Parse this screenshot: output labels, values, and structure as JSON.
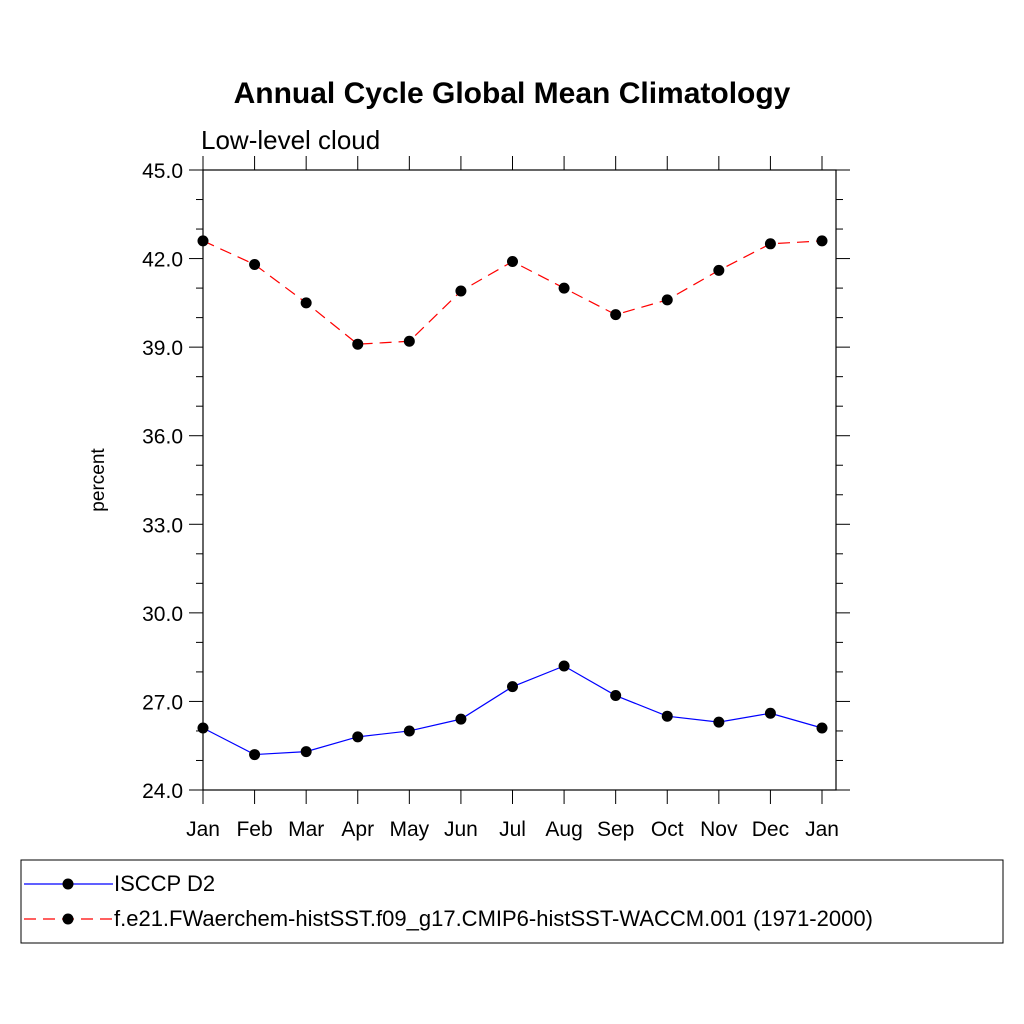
{
  "chart_data": {
    "type": "line",
    "title": "Annual Cycle Global Mean Climatology",
    "subtitle": "Low-level cloud",
    "xlabel": "",
    "ylabel": "percent",
    "categories": [
      "Jan",
      "Feb",
      "Mar",
      "Apr",
      "May",
      "Jun",
      "Jul",
      "Aug",
      "Sep",
      "Oct",
      "Nov",
      "Dec",
      "Jan"
    ],
    "ylim": [
      24.0,
      45.0
    ],
    "yticks": [
      "24.0",
      "27.0",
      "30.0",
      "33.0",
      "36.0",
      "39.0",
      "42.0",
      "45.0"
    ],
    "grid": false,
    "legend_position": "bottom",
    "series": [
      {
        "name": "ISCCP D2",
        "color": "#0000ff",
        "line_style": "solid",
        "marker": "filled-circle",
        "values": [
          26.1,
          25.2,
          25.3,
          25.8,
          26.0,
          26.4,
          27.5,
          28.2,
          27.2,
          26.5,
          26.3,
          26.6,
          26.1
        ]
      },
      {
        "name": "f.e21.FWaerchem-histSST.f09_g17.CMIP6-histSST-WACCM.001 (1971-2000)",
        "color": "#ff0000",
        "line_style": "dashed",
        "marker": "filled-circle",
        "values": [
          42.6,
          41.8,
          40.5,
          39.1,
          39.2,
          40.9,
          41.9,
          41.0,
          40.1,
          40.6,
          41.6,
          42.5,
          42.6
        ]
      }
    ]
  }
}
